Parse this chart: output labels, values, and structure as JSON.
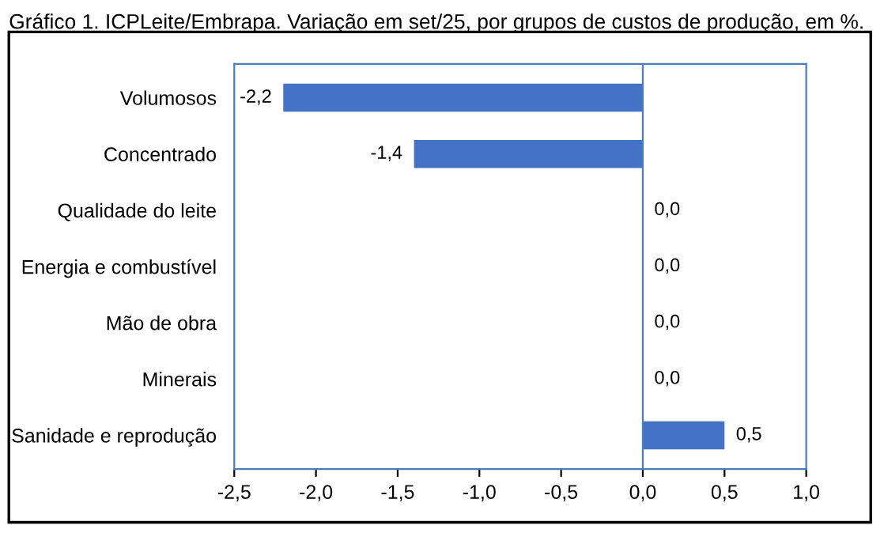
{
  "chart_data": {
    "type": "bar",
    "orientation": "horizontal",
    "title": "Gráfico 1. ICPLeite/Embrapa. Variação em set/25, por grupos de custos de produção, em %.",
    "categories": [
      "Volumosos",
      "Concentrado",
      "Qualidade do leite",
      "Energia e combustível",
      "Mão de obra",
      "Minerais",
      "Sanidade e reprodução"
    ],
    "values": [
      -2.2,
      -1.4,
      0.0,
      0.0,
      0.0,
      0.0,
      0.5
    ],
    "value_labels": [
      "-2,2",
      "-1,4",
      "0,0",
      "0,0",
      "0,0",
      "0,0",
      "0,5"
    ],
    "color": "#4472c4",
    "xlim": [
      -2.5,
      1.0
    ],
    "xticks": [
      {
        "value": -2.5,
        "label": "-2,5"
      },
      {
        "value": -2.0,
        "label": "-2,0"
      },
      {
        "value": -1.5,
        "label": "-1,5"
      },
      {
        "value": -1.0,
        "label": "-1,0"
      },
      {
        "value": -0.5,
        "label": "-0,5"
      },
      {
        "value": 0.0,
        "label": "0,0"
      },
      {
        "value": 0.5,
        "label": "0,5"
      },
      {
        "value": 1.0,
        "label": "1,0"
      }
    ],
    "ref_lines": [
      {
        "axis": "x",
        "value": 0.0,
        "color": "#4a7ebb"
      }
    ],
    "grid": false,
    "legend": false
  }
}
